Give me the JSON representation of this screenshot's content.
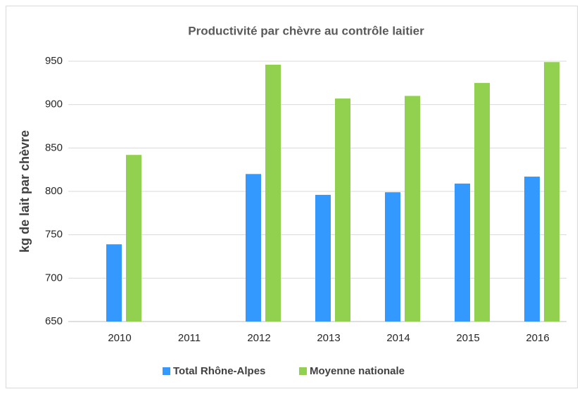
{
  "chart_data": {
    "type": "bar",
    "title": "Productivité par chèvre au contrôle laitier",
    "y_label": "kg de lait par chèvre",
    "categories": [
      "2010",
      "2011",
      "2012",
      "2013",
      "2014",
      "2015",
      "2016"
    ],
    "series": [
      {
        "name": "Total Rhône-Alpes",
        "color": "#3399ff",
        "values": [
          739,
          null,
          820,
          796,
          799,
          809,
          817
        ]
      },
      {
        "name": "Moyenne nationale",
        "color": "#92d050",
        "values": [
          842,
          null,
          946,
          907,
          910,
          925,
          949
        ]
      }
    ],
    "ylim": [
      650,
      950
    ],
    "yticks": [
      650,
      700,
      750,
      800,
      850,
      900,
      950
    ],
    "grid": true,
    "legend": "bottom"
  }
}
